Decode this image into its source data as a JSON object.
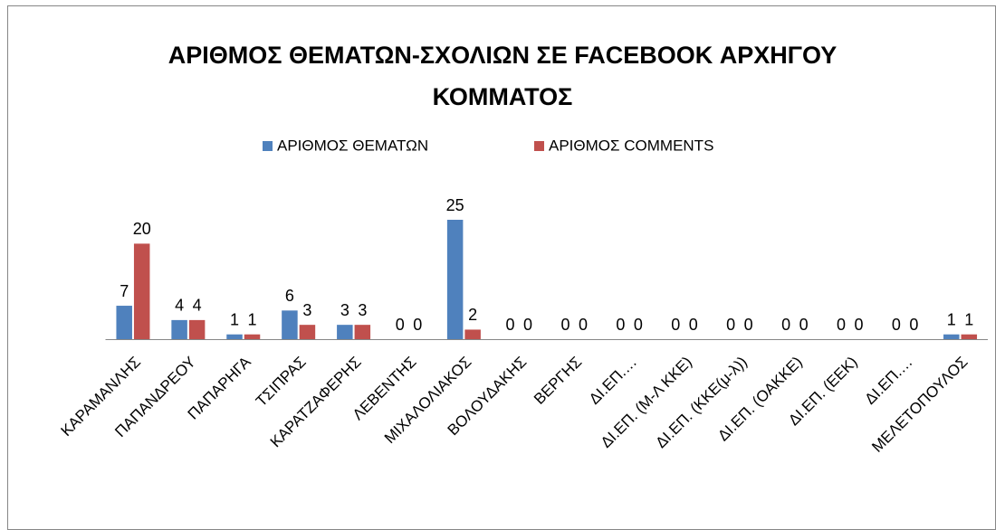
{
  "chart_data": {
    "type": "bar",
    "title": "ΑΡΙΘΜΟΣ ΘΕΜΑΤΩΝ-ΣΧΟΛΙΩΝ ΣΕ FACEBOOK ΑΡΧΗΓΟΥ ΚΟΜΜΑΤΟΣ",
    "categories": [
      "ΚΑΡΑΜΑΝΛΗΣ",
      "ΠΑΠΑΝΔΡΕΟΥ",
      "ΠΑΠΑΡΗΓΑ",
      "ΤΣΙΠΡΑΣ",
      "ΚΑΡΑΤΖΑΦΕΡΗΣ",
      "ΛΕΒΕΝΤΗΣ",
      "ΜΙΧΑΛΟΛΙΑΚΟΣ",
      "ΒΟΛΟΥΔΑΚΗΣ",
      "ΒΕΡΓΗΣ",
      "ΔΙ.ΕΠ.…",
      "ΔΙ.ΕΠ. (Μ-Λ ΚΚΕ)",
      "ΔΙ.ΕΠ. (ΚΚΕ(μ-λ))",
      "ΔΙ.ΕΠ. (ΟΑΚΚΕ)",
      "ΔΙ.ΕΠ. (ΕΕΚ)",
      "ΔΙ.ΕΠ.…",
      "ΜΕΛΕΤΟΠΟΥΛΟΣ"
    ],
    "series": [
      {
        "name": "ΑΡΙΘΜΟΣ ΘΕΜΑΤΩΝ",
        "color": "#4f81bd",
        "values": [
          7,
          4,
          1,
          6,
          3,
          0,
          25,
          0,
          0,
          0,
          0,
          0,
          0,
          0,
          0,
          1
        ]
      },
      {
        "name": "ΑΡΙΘΜΟΣ COMMENTS",
        "color": "#c0504d",
        "values": [
          20,
          4,
          1,
          3,
          3,
          0,
          2,
          0,
          0,
          0,
          0,
          0,
          0,
          0,
          0,
          1
        ]
      }
    ],
    "legend": "top"
  }
}
